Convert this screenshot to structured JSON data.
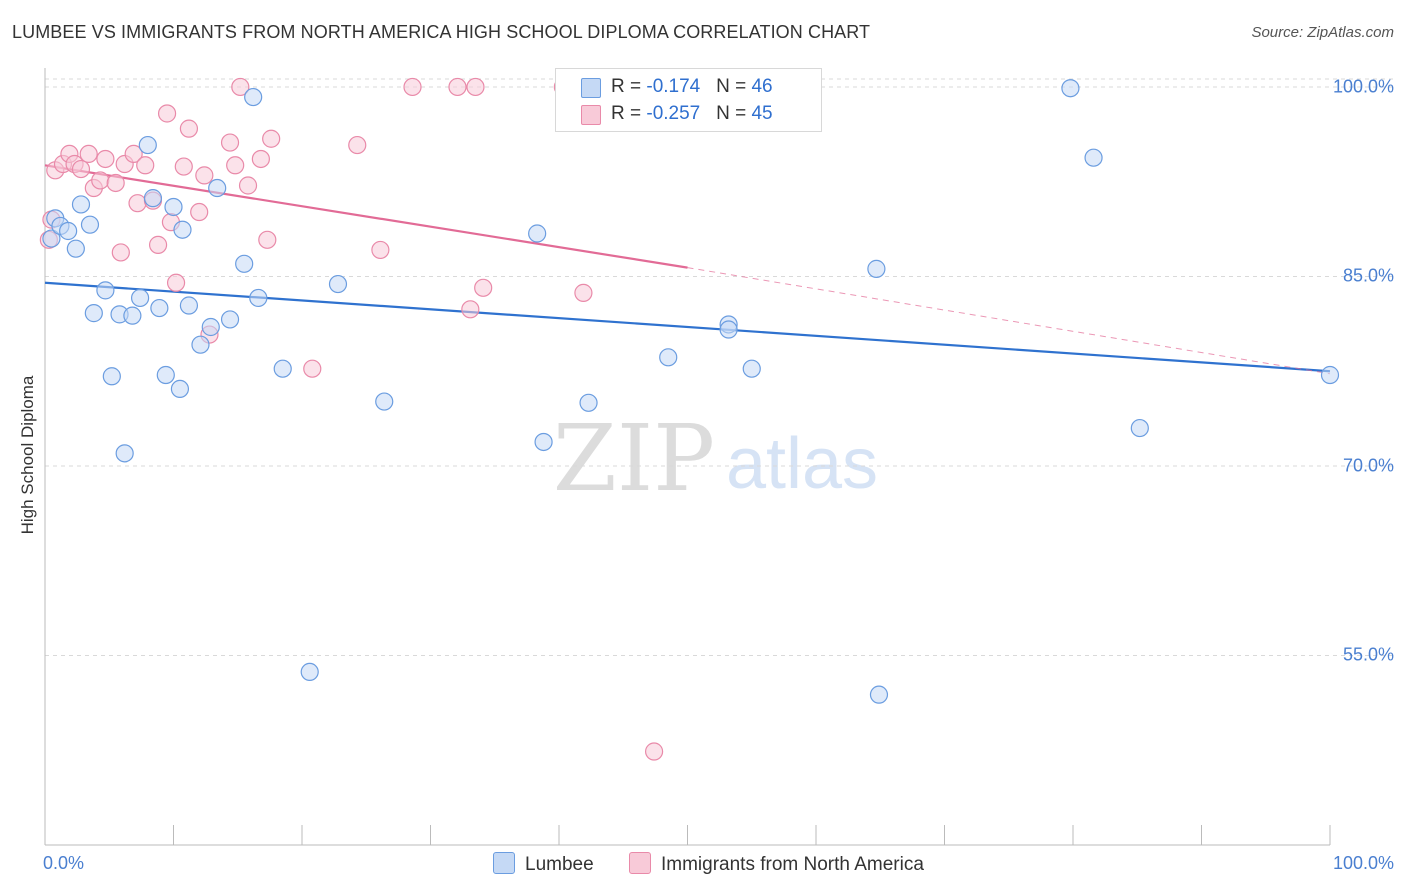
{
  "title": "LUMBEE VS IMMIGRANTS FROM NORTH AMERICA HIGH SCHOOL DIPLOMA CORRELATION CHART",
  "source": "Source: ZipAtlas.com",
  "watermark": {
    "zip": "ZIP",
    "atlas": "atlas"
  },
  "colors": {
    "blue_fill": "#c5d9f5",
    "blue_stroke": "#6b9de0",
    "blue_line": "#2f72cf",
    "pink_fill": "#f8cad8",
    "pink_stroke": "#e98aa9",
    "pink_line": "#e26b96",
    "axis_text": "#4a7fd0",
    "grid": "#d9d9d9"
  },
  "stats": [
    {
      "r_label": "R = ",
      "r_value": "-0.174",
      "n_label": "N = ",
      "n_value": "46",
      "color": "#c5d9f5",
      "border": "#6b9de0"
    },
    {
      "r_label": "R = ",
      "r_value": "-0.257",
      "n_label": "N = ",
      "n_value": "45",
      "color": "#f8cad8",
      "border": "#e98aa9"
    }
  ],
  "legend": [
    {
      "label": "Lumbee",
      "color": "#c5d9f5",
      "border": "#6b9de0"
    },
    {
      "label": "Immigrants from North America",
      "color": "#f8cad8",
      "border": "#e98aa9"
    }
  ],
  "chart_data": {
    "type": "scatter",
    "title": "LUMBEE VS IMMIGRANTS FROM NORTH AMERICA HIGH SCHOOL DIPLOMA CORRELATION CHART",
    "xlabel": "",
    "ylabel": "High School Diploma",
    "xlim": [
      0,
      100
    ],
    "ylim": [
      40,
      101.5
    ],
    "x_tick_labels": [
      "0.0%",
      "100.0%"
    ],
    "y_ticks": [
      55,
      70,
      85,
      100
    ],
    "y_tick_labels": [
      "55.0%",
      "70.0%",
      "85.0%",
      "100.0%"
    ],
    "grid": true,
    "series": [
      {
        "name": "Lumbee",
        "points": [
          [
            0.5,
            88.0
          ],
          [
            0.8,
            89.6
          ],
          [
            1.2,
            89.0
          ],
          [
            1.8,
            88.6
          ],
          [
            2.4,
            87.2
          ],
          [
            2.8,
            90.7
          ],
          [
            3.5,
            89.1
          ],
          [
            3.8,
            82.1
          ],
          [
            4.7,
            83.9
          ],
          [
            5.2,
            77.1
          ],
          [
            5.8,
            82.0
          ],
          [
            6.2,
            71.0
          ],
          [
            6.8,
            81.9
          ],
          [
            7.4,
            83.3
          ],
          [
            8.0,
            95.4
          ],
          [
            8.4,
            91.2
          ],
          [
            8.9,
            82.5
          ],
          [
            9.4,
            77.2
          ],
          [
            10.0,
            90.5
          ],
          [
            10.5,
            76.1
          ],
          [
            10.7,
            88.7
          ],
          [
            11.2,
            82.7
          ],
          [
            12.1,
            79.6
          ],
          [
            12.9,
            81.0
          ],
          [
            13.4,
            92.0
          ],
          [
            14.4,
            81.6
          ],
          [
            15.5,
            86.0
          ],
          [
            16.2,
            99.2
          ],
          [
            16.6,
            83.3
          ],
          [
            18.5,
            77.7
          ],
          [
            20.6,
            53.7
          ],
          [
            22.8,
            84.4
          ],
          [
            26.4,
            75.1
          ],
          [
            38.3,
            88.4
          ],
          [
            38.8,
            71.9
          ],
          [
            42.3,
            75.0
          ],
          [
            48.5,
            78.6
          ],
          [
            53.2,
            81.2
          ],
          [
            53.2,
            80.8
          ],
          [
            55.0,
            77.7
          ],
          [
            64.7,
            85.6
          ],
          [
            64.9,
            51.9
          ],
          [
            79.8,
            99.9
          ],
          [
            81.6,
            94.4
          ],
          [
            85.2,
            73.0
          ],
          [
            100.0,
            77.2
          ]
        ],
        "trend": [
          [
            0,
            84.5
          ],
          [
            100,
            77.5
          ]
        ]
      },
      {
        "name": "Immigrants from North America",
        "points": [
          [
            0.3,
            87.9
          ],
          [
            0.5,
            89.5
          ],
          [
            0.8,
            93.4
          ],
          [
            1.4,
            93.9
          ],
          [
            1.9,
            94.7
          ],
          [
            2.3,
            93.9
          ],
          [
            2.8,
            93.5
          ],
          [
            3.4,
            94.7
          ],
          [
            3.8,
            92.0
          ],
          [
            4.3,
            92.6
          ],
          [
            4.7,
            94.3
          ],
          [
            5.5,
            92.4
          ],
          [
            5.9,
            86.9
          ],
          [
            6.2,
            93.9
          ],
          [
            6.9,
            94.7
          ],
          [
            7.2,
            90.8
          ],
          [
            7.8,
            93.8
          ],
          [
            8.4,
            91.0
          ],
          [
            8.8,
            87.5
          ],
          [
            9.5,
            97.9
          ],
          [
            9.8,
            89.3
          ],
          [
            10.2,
            84.5
          ],
          [
            10.8,
            93.7
          ],
          [
            11.2,
            96.7
          ],
          [
            12.0,
            90.1
          ],
          [
            12.4,
            93.0
          ],
          [
            12.8,
            80.4
          ],
          [
            14.4,
            95.6
          ],
          [
            14.8,
            93.8
          ],
          [
            15.2,
            100.0
          ],
          [
            15.8,
            92.2
          ],
          [
            16.8,
            94.3
          ],
          [
            17.3,
            87.9
          ],
          [
            17.6,
            95.9
          ],
          [
            20.8,
            77.7
          ],
          [
            24.3,
            95.4
          ],
          [
            26.1,
            87.1
          ],
          [
            28.6,
            100.0
          ],
          [
            32.1,
            100.0
          ],
          [
            33.1,
            82.4
          ],
          [
            33.5,
            100.0
          ],
          [
            34.1,
            84.1
          ],
          [
            40.3,
            100.0
          ],
          [
            41.9,
            83.7
          ],
          [
            47.4,
            47.4
          ]
        ],
        "trend": [
          [
            0,
            93.8
          ],
          [
            50,
            85.7
          ]
        ],
        "trend_extension": [
          [
            50,
            85.7
          ],
          [
            100,
            77.3
          ]
        ]
      }
    ]
  }
}
